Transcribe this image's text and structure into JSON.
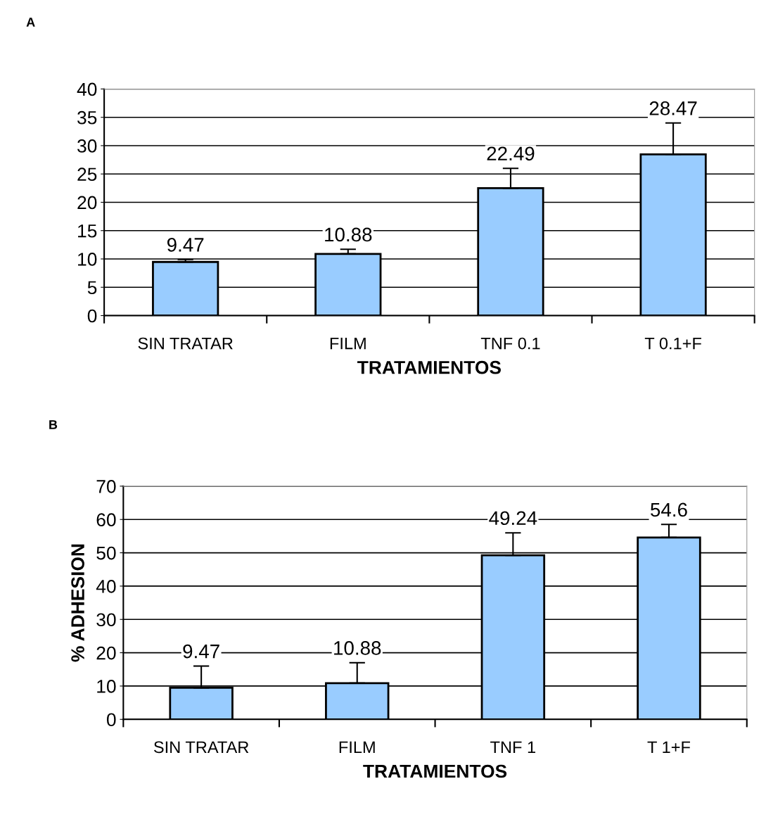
{
  "chart_data": [
    {
      "type": "bar",
      "title": "A",
      "xlabel": "TRATAMIENTOS",
      "categories": [
        "SIN TRATAR",
        "FILM",
        "TNF 0.1",
        "T 0.1+F"
      ],
      "values": [
        9.47,
        10.88,
        22.49,
        28.47
      ],
      "errors": [
        [
          9.47,
          9.9
        ],
        [
          10.88,
          11.7
        ],
        [
          22.49,
          26
        ],
        [
          28.47,
          34
        ]
      ],
      "color": "#99ccff",
      "ylim": [
        0,
        40
      ],
      "yticks": [
        0,
        5,
        10,
        15,
        20,
        25,
        30,
        35,
        40
      ],
      "grid": "y",
      "data_labels": true
    },
    {
      "type": "bar",
      "title": "B",
      "xlabel": "TRATAMIENTOS",
      "ylabel": "% ADHESION",
      "categories": [
        "SIN TRATAR",
        "FILM",
        "TNF 1",
        "T 1+F"
      ],
      "values": [
        9.47,
        10.88,
        49.24,
        54.6
      ],
      "errors": [
        [
          9.47,
          16
        ],
        [
          10.88,
          17
        ],
        [
          49.24,
          56
        ],
        [
          54.6,
          58.5
        ]
      ],
      "color": "#99ccff",
      "ylim": [
        0,
        70
      ],
      "yticks": [
        0,
        10,
        20,
        30,
        40,
        50,
        60,
        70
      ],
      "grid": "y",
      "data_labels": true
    }
  ]
}
